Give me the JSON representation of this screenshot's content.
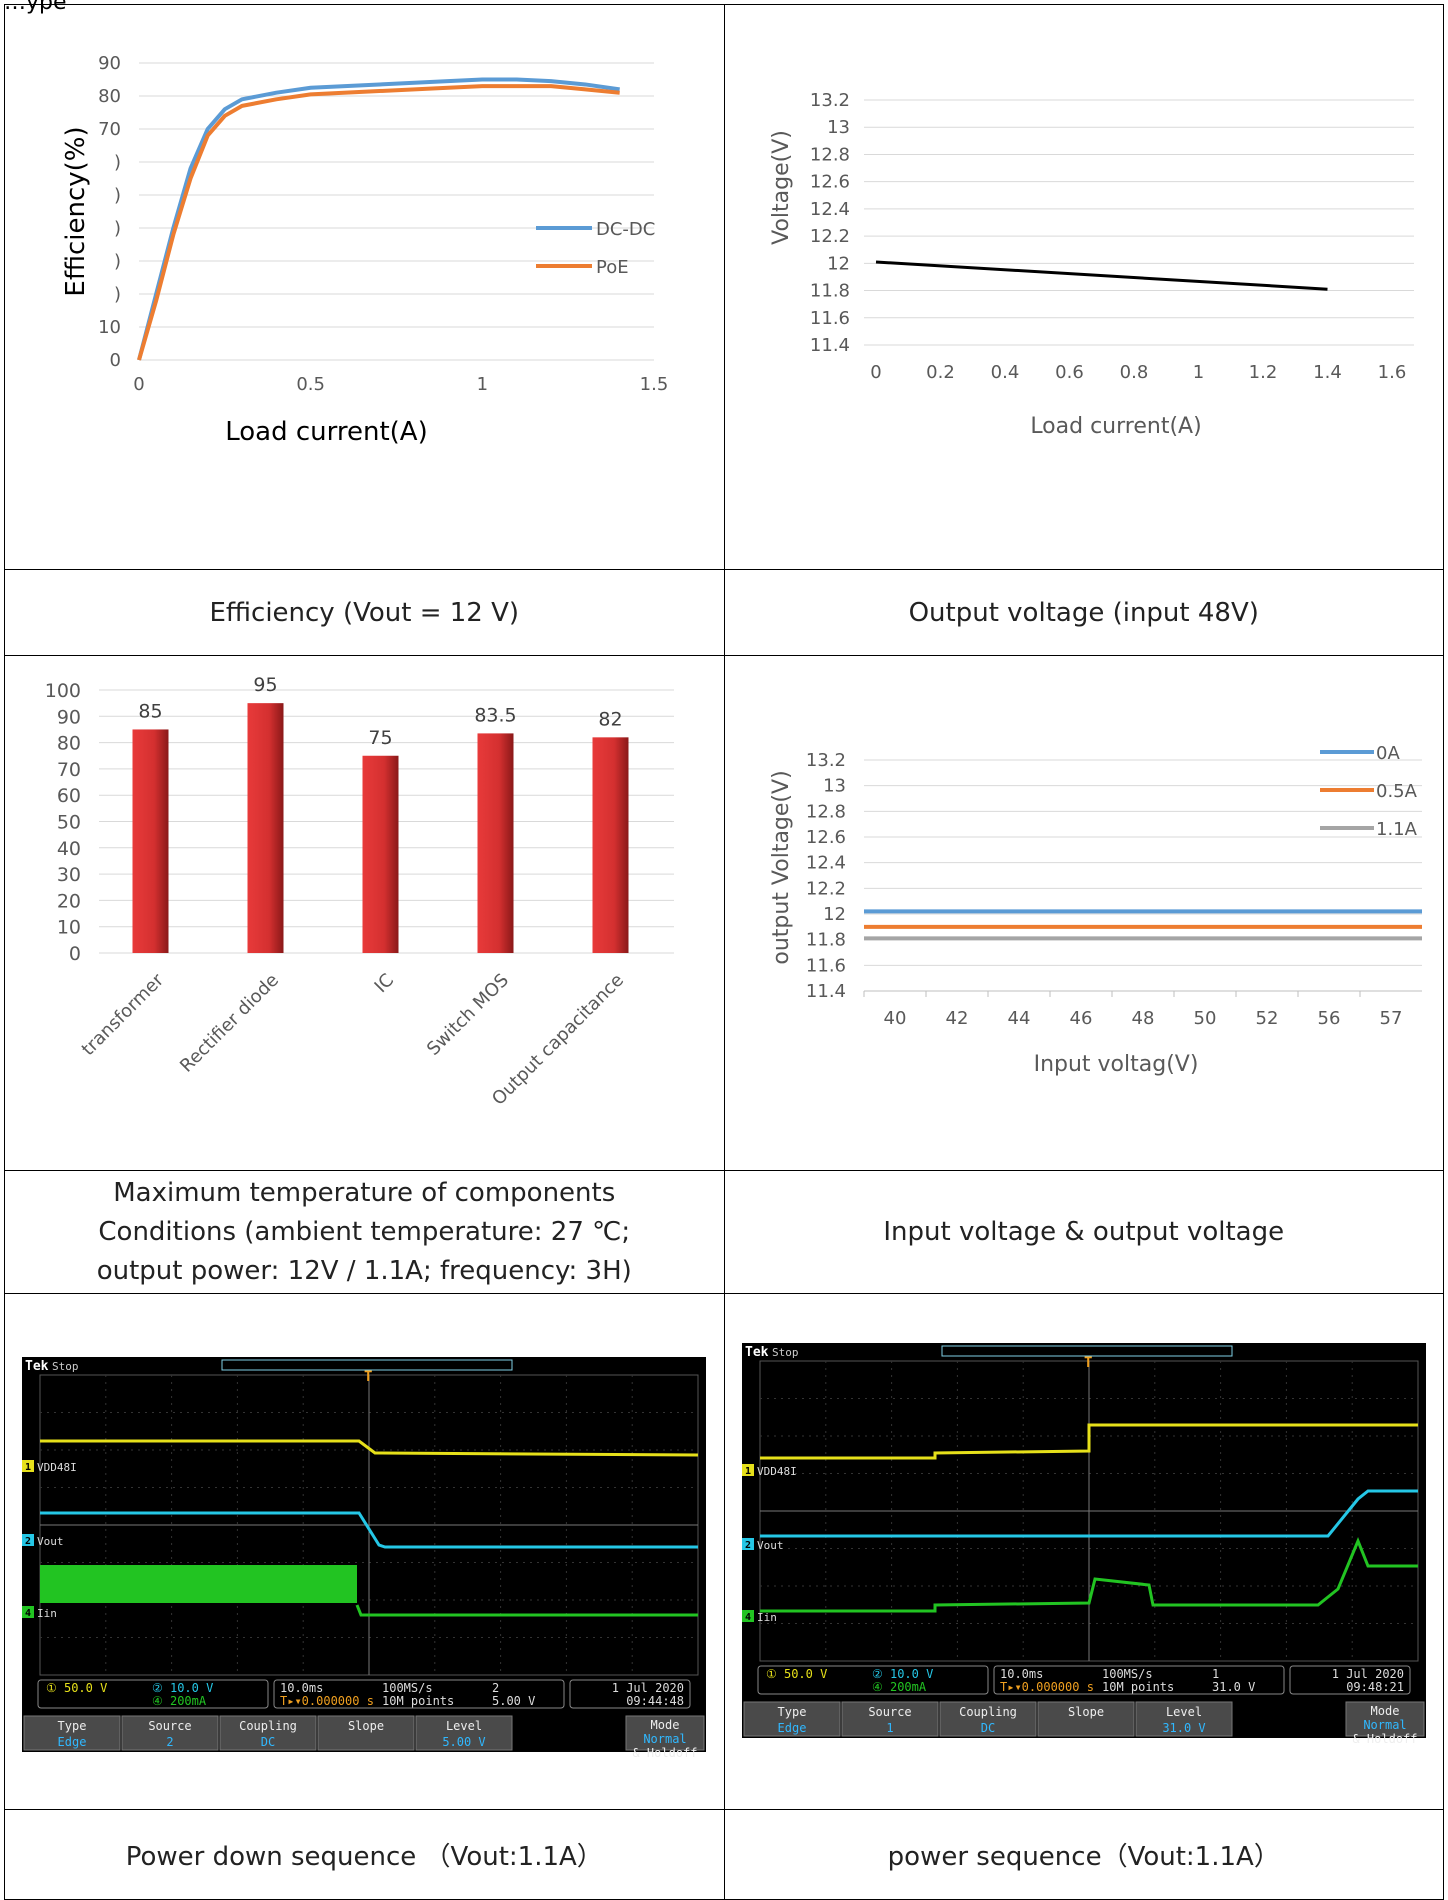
{
  "header_fragment": "…ype",
  "charts": {
    "efficiency": {
      "chart_data": {
        "type": "line",
        "xlabel": "Load current(A)",
        "ylabel": "Efficiency(%)",
        "x_ticks": [
          "0",
          "0.5",
          "1",
          "1.5"
        ],
        "y_ticks": [
          "90",
          "80",
          "70",
          ")",
          ")",
          ")",
          ")",
          ")",
          "10",
          "0"
        ],
        "xlim": [
          0,
          1.5
        ],
        "ylim": [
          0,
          90
        ],
        "series": [
          {
            "name": "DC-DC",
            "color": "#5B9BD5",
            "x": [
              0,
              0.05,
              0.1,
              0.15,
              0.2,
              0.25,
              0.3,
              0.4,
              0.5,
              0.7,
              0.9,
              1.0,
              1.1,
              1.2,
              1.3,
              1.4
            ],
            "y": [
              0,
              20,
              40,
              58,
              70,
              76,
              79,
              81,
              82.5,
              83.5,
              84.5,
              85,
              85,
              84.5,
              83.5,
              82
            ]
          },
          {
            "name": "PoE",
            "color": "#ED7D31",
            "x": [
              0,
              0.05,
              0.1,
              0.15,
              0.2,
              0.25,
              0.3,
              0.4,
              0.5,
              0.7,
              0.9,
              1.0,
              1.1,
              1.2,
              1.3,
              1.4
            ],
            "y": [
              0,
              18,
              38,
              55,
              68,
              74,
              77,
              79,
              80.5,
              81.5,
              82.5,
              83,
              83,
              83,
              82,
              81
            ]
          }
        ]
      },
      "caption": "Efficiency (Vout = 12 V)"
    },
    "output_voltage": {
      "chart_data": {
        "type": "line",
        "xlabel": "Load current(A)",
        "ylabel": "Voltage(V)",
        "x_ticks": [
          "0",
          "0.2",
          "0.4",
          "0.6",
          "0.8",
          "1",
          "1.2",
          "1.4",
          "1.6"
        ],
        "y_ticks": [
          "13.2",
          "13",
          "12.8",
          "12.6",
          "12.4",
          "12.2",
          "12",
          "11.8",
          "11.6",
          "11.4"
        ],
        "xlim": [
          0,
          1.6
        ],
        "ylim": [
          11.4,
          13.2
        ],
        "series": [
          {
            "name": "",
            "color": "#000000",
            "x": [
              0,
              1.4
            ],
            "y": [
              12.01,
              11.81
            ]
          }
        ]
      },
      "caption": "Output voltage (input 48V)"
    },
    "temperature": {
      "chart_data": {
        "type": "bar",
        "categories": [
          "transformer",
          "Rectifier diode",
          "IC",
          "Switch MOS",
          "Output capacitance"
        ],
        "values": [
          85,
          95,
          75,
          83.5,
          82
        ],
        "value_labels": [
          "85",
          "95",
          "75",
          "83.5",
          "82"
        ],
        "y_ticks": [
          "100",
          "90",
          "80",
          "70",
          "60",
          "50",
          "40",
          "30",
          "20",
          "10",
          "0"
        ],
        "ylim": [
          0,
          100
        ],
        "bar_color": "#E83A3A"
      },
      "caption_lines": [
        "Maximum temperature of components",
        "Conditions (ambient temperature: 27 ℃;",
        "output power: 12V / 1.1A; frequency: 3H)"
      ]
    },
    "input_output": {
      "chart_data": {
        "type": "line",
        "xlabel": "Input voltag(V)",
        "ylabel": "output Voltage(V)",
        "categories": [
          "40",
          "42",
          "44",
          "46",
          "48",
          "50",
          "52",
          "56",
          "57"
        ],
        "y_ticks": [
          "13.2",
          "13",
          "12.8",
          "12.6",
          "12.4",
          "12.2",
          "12",
          "11.8",
          "11.6",
          "11.4"
        ],
        "ylim": [
          11.4,
          13.2
        ],
        "series": [
          {
            "name": "0A",
            "color": "#5B9BD5",
            "values": [
              12.02,
              12.02,
              12.02,
              12.02,
              12.02,
              12.02,
              12.02,
              12.02,
              12.02
            ]
          },
          {
            "name": "0.5A",
            "color": "#ED7D31",
            "values": [
              11.9,
              11.9,
              11.9,
              11.9,
              11.9,
              11.9,
              11.9,
              11.9,
              11.9
            ]
          },
          {
            "name": "1.1A",
            "color": "#A5A5A5",
            "values": [
              11.81,
              11.81,
              11.81,
              11.81,
              11.81,
              11.81,
              11.81,
              11.81,
              11.81
            ]
          }
        ]
      },
      "caption": "Input voltage & output voltage"
    }
  },
  "scopes": {
    "down": {
      "brand": "Tek",
      "state": "Stop",
      "ch1_label": "VDD48I",
      "ch2_label": "Vout",
      "ch4_label": "Iin",
      "ch1_scale": "50.0 V",
      "ch2_scale": "10.0 V",
      "ch4_scale": "200mA",
      "timebase": "10.0ms",
      "delay": "0.000000 s",
      "sample_rate": "100MS/s",
      "record": "10M points",
      "trig_ch": "2",
      "trig_level": "5.00 V",
      "date": "1 Jul  2020",
      "time": "09:44:48",
      "menu": [
        {
          "title": "Type",
          "value": "Edge"
        },
        {
          "title": "Source",
          "value": "2"
        },
        {
          "title": "Coupling",
          "value": "DC"
        },
        {
          "title": "Slope",
          "value": ""
        },
        {
          "title": "Level",
          "value": "5.00 V"
        }
      ],
      "mode_title": "Mode",
      "mode_value": "Normal",
      "mode_extra": "& Holdoff",
      "caption": "Power down sequence  （Vout:1.1A）"
    },
    "up": {
      "brand": "Tek",
      "state": "Stop",
      "ch1_label": "VDD48I",
      "ch2_label": "Vout",
      "ch4_label": "Iin",
      "ch1_scale": "50.0 V",
      "ch2_scale": "10.0 V",
      "ch4_scale": "200mA",
      "timebase": "10.0ms",
      "delay": "0.000000 s",
      "sample_rate": "100MS/s",
      "record": "10M points",
      "trig_ch": "1",
      "trig_level": "31.0 V",
      "date": "1 Jul  2020",
      "time": "09:48:21",
      "menu": [
        {
          "title": "Type",
          "value": "Edge"
        },
        {
          "title": "Source",
          "value": "1"
        },
        {
          "title": "Coupling",
          "value": "DC"
        },
        {
          "title": "Slope",
          "value": ""
        },
        {
          "title": "Level",
          "value": "31.0 V"
        }
      ],
      "mode_title": "Mode",
      "mode_value": "Normal",
      "mode_extra": "& Holdoff",
      "caption": "power sequence（Vout:1.1A）"
    }
  }
}
